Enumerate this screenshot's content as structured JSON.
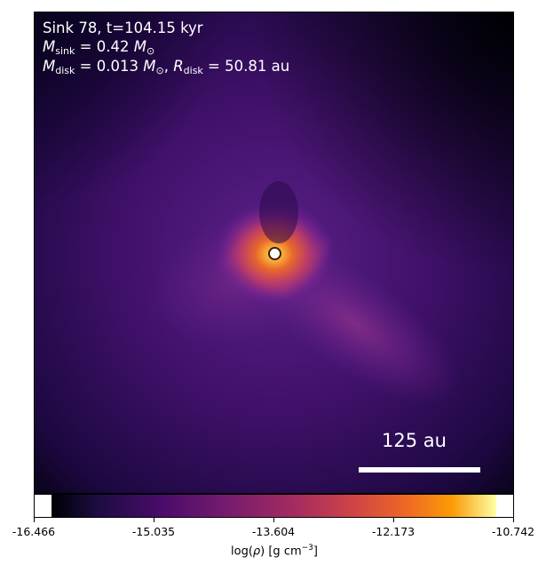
{
  "annotation": {
    "sink_title": "Sink 78, t=104.15 kyr",
    "msink_value": "0.42",
    "mdisk_value": "0.013",
    "rdisk_value": "50.81",
    "unit_au": "au"
  },
  "scale_bar": {
    "label": "125 au"
  },
  "colorbar": {
    "ticks": [
      "-16.466",
      "-15.035",
      "-13.604",
      "-12.173",
      "-10.742"
    ],
    "label_prefix": "log(",
    "label_rho": "ρ",
    "label_unit": ") [g cm",
    "label_exp": "−3",
    "label_end": "]",
    "colormap": "plasma/inferno",
    "min": -16.466,
    "max": -10.742
  },
  "colors": {
    "background_dark": "#1a0630",
    "midtone": "#5b1d84",
    "hot": "#f07a22",
    "core": "#fcf5a0"
  }
}
